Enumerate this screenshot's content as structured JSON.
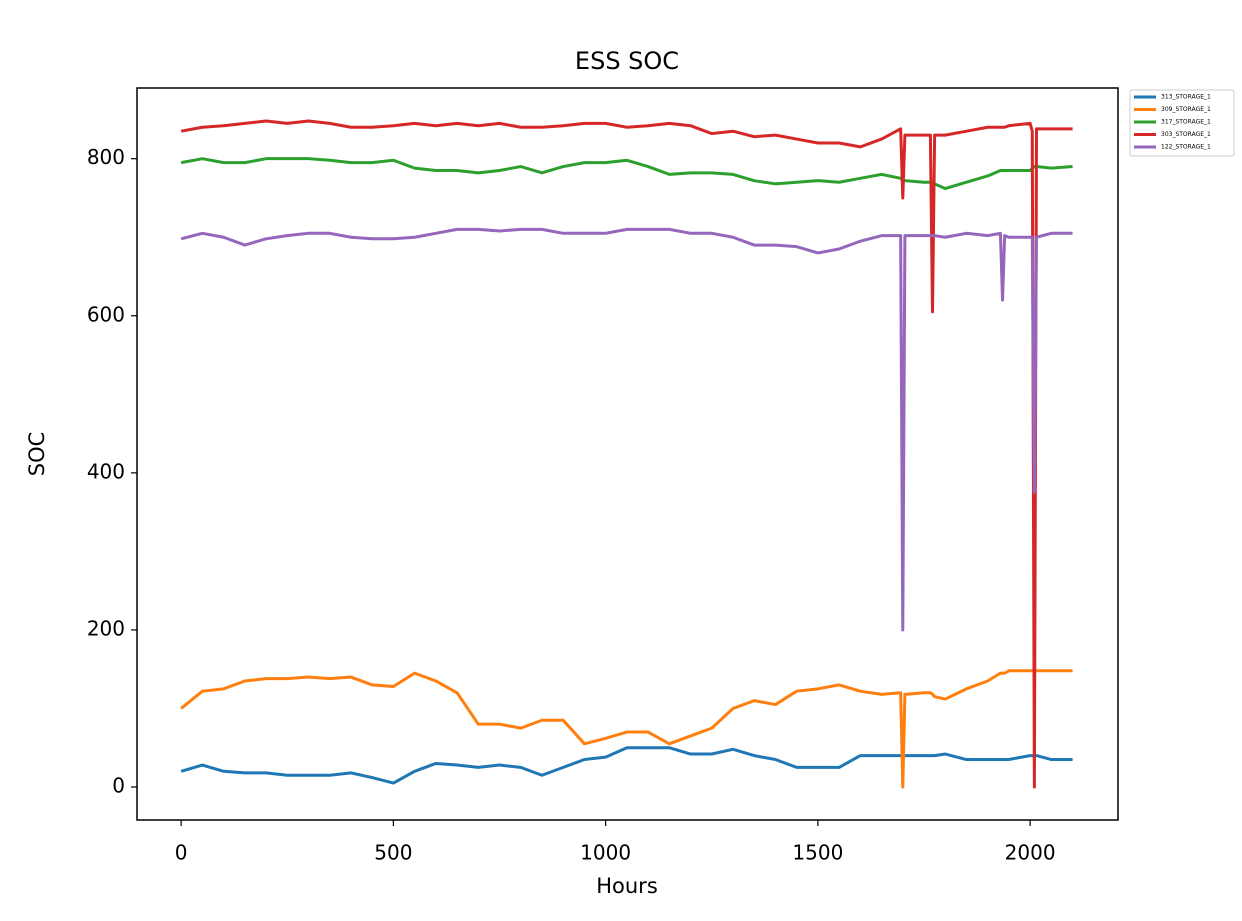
{
  "chart_data": {
    "type": "line",
    "title": "ESS SOC",
    "x_label": "Hours",
    "y_label": "SOC",
    "x": [
      0,
      50,
      100,
      150,
      200,
      250,
      300,
      350,
      400,
      450,
      500,
      550,
      600,
      650,
      700,
      750,
      800,
      850,
      900,
      950,
      1000,
      1050,
      1100,
      1150,
      1200,
      1250,
      1300,
      1350,
      1400,
      1450,
      1500,
      1550,
      1600,
      1650,
      1695,
      1700,
      1705,
      1750,
      1765,
      1770,
      1775,
      1800,
      1850,
      1900,
      1930,
      1935,
      1940,
      1950,
      2000,
      2005,
      2010,
      2015,
      2050,
      2100
    ],
    "series": [
      {
        "name": "313_STORAGE_1",
        "color": "#1f77b4",
        "values": [
          20,
          28,
          20,
          18,
          18,
          15,
          15,
          15,
          18,
          12,
          5,
          20,
          30,
          28,
          25,
          28,
          25,
          15,
          25,
          35,
          38,
          50,
          50,
          50,
          42,
          42,
          48,
          40,
          35,
          25,
          25,
          25,
          40,
          40,
          40,
          40,
          40,
          40,
          40,
          40,
          40,
          42,
          35,
          35,
          35,
          35,
          35,
          35,
          40,
          40,
          40,
          40,
          35,
          35
        ]
      },
      {
        "name": "309_STORAGE_1",
        "color": "#ff7f0e",
        "values": [
          100,
          122,
          125,
          135,
          138,
          138,
          140,
          138,
          140,
          130,
          128,
          145,
          135,
          120,
          80,
          80,
          75,
          85,
          85,
          55,
          62,
          70,
          70,
          55,
          65,
          75,
          100,
          110,
          105,
          122,
          125,
          130,
          122,
          118,
          120,
          0,
          118,
          120,
          120,
          118,
          115,
          112,
          125,
          135,
          145,
          145,
          145,
          148,
          148,
          148,
          148,
          148,
          148,
          148
        ]
      },
      {
        "name": "317_STORAGE_1",
        "color": "#2ca02c",
        "values": [
          795,
          800,
          795,
          795,
          800,
          800,
          800,
          798,
          795,
          795,
          798,
          788,
          785,
          785,
          782,
          785,
          790,
          782,
          790,
          795,
          795,
          798,
          790,
          780,
          782,
          782,
          780,
          772,
          768,
          770,
          772,
          770,
          775,
          780,
          775,
          772,
          772,
          770,
          770,
          770,
          768,
          762,
          770,
          778,
          785,
          785,
          785,
          785,
          785,
          788,
          790,
          790,
          788,
          790
        ]
      },
      {
        "name": "303_STORAGE_1",
        "color": "#d62728",
        "values": [
          835,
          840,
          842,
          845,
          848,
          845,
          848,
          845,
          840,
          840,
          842,
          845,
          842,
          845,
          842,
          845,
          840,
          840,
          842,
          845,
          845,
          840,
          842,
          845,
          842,
          832,
          835,
          828,
          830,
          825,
          820,
          820,
          815,
          825,
          838,
          750,
          830,
          830,
          830,
          605,
          830,
          830,
          835,
          840,
          840,
          840,
          840,
          842,
          845,
          835,
          0,
          838,
          838,
          838
        ]
      },
      {
        "name": "122_STORAGE_1",
        "color": "#9467bd",
        "values": [
          698,
          705,
          700,
          690,
          698,
          702,
          705,
          705,
          700,
          698,
          698,
          700,
          705,
          710,
          710,
          708,
          710,
          710,
          705,
          705,
          705,
          710,
          710,
          710,
          705,
          705,
          700,
          690,
          690,
          688,
          680,
          685,
          695,
          702,
          702,
          200,
          702,
          702,
          702,
          702,
          702,
          700,
          705,
          702,
          705,
          620,
          702,
          700,
          700,
          700,
          375,
          700,
          705,
          705
        ]
      }
    ],
    "xlim": [
      -104,
      2207
    ],
    "ylim": [
      -42,
      890
    ],
    "xticks": [
      0,
      500,
      1000,
      1500,
      2000
    ],
    "yticks": [
      0,
      200,
      400,
      600,
      800
    ],
    "legend": "outside-upper-right"
  }
}
